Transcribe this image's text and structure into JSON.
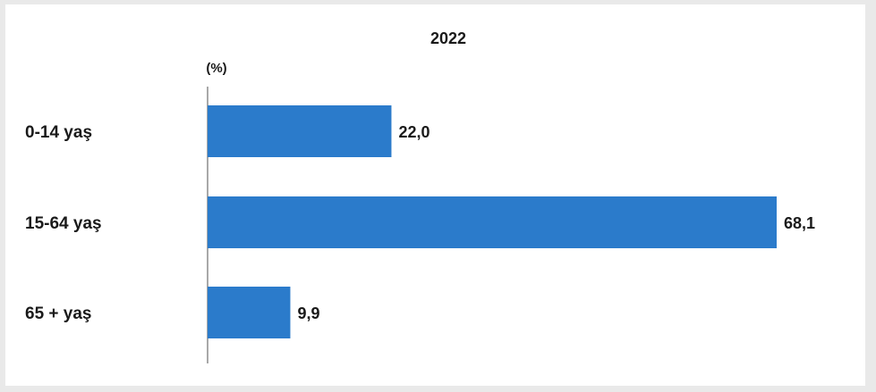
{
  "chart_data": {
    "type": "bar",
    "orientation": "horizontal",
    "title": "2022",
    "unit_label": "(%)",
    "categories": [
      "0-14 yaş",
      "15-64 yaş",
      "65 + yaş"
    ],
    "values": [
      22.0,
      68.1,
      9.9
    ],
    "value_labels": [
      "22,0",
      "68,1",
      "9,9"
    ],
    "xlim": [
      0,
      68.1
    ],
    "grid": false,
    "legend": "none",
    "bar_color": "#2b7bcb"
  }
}
